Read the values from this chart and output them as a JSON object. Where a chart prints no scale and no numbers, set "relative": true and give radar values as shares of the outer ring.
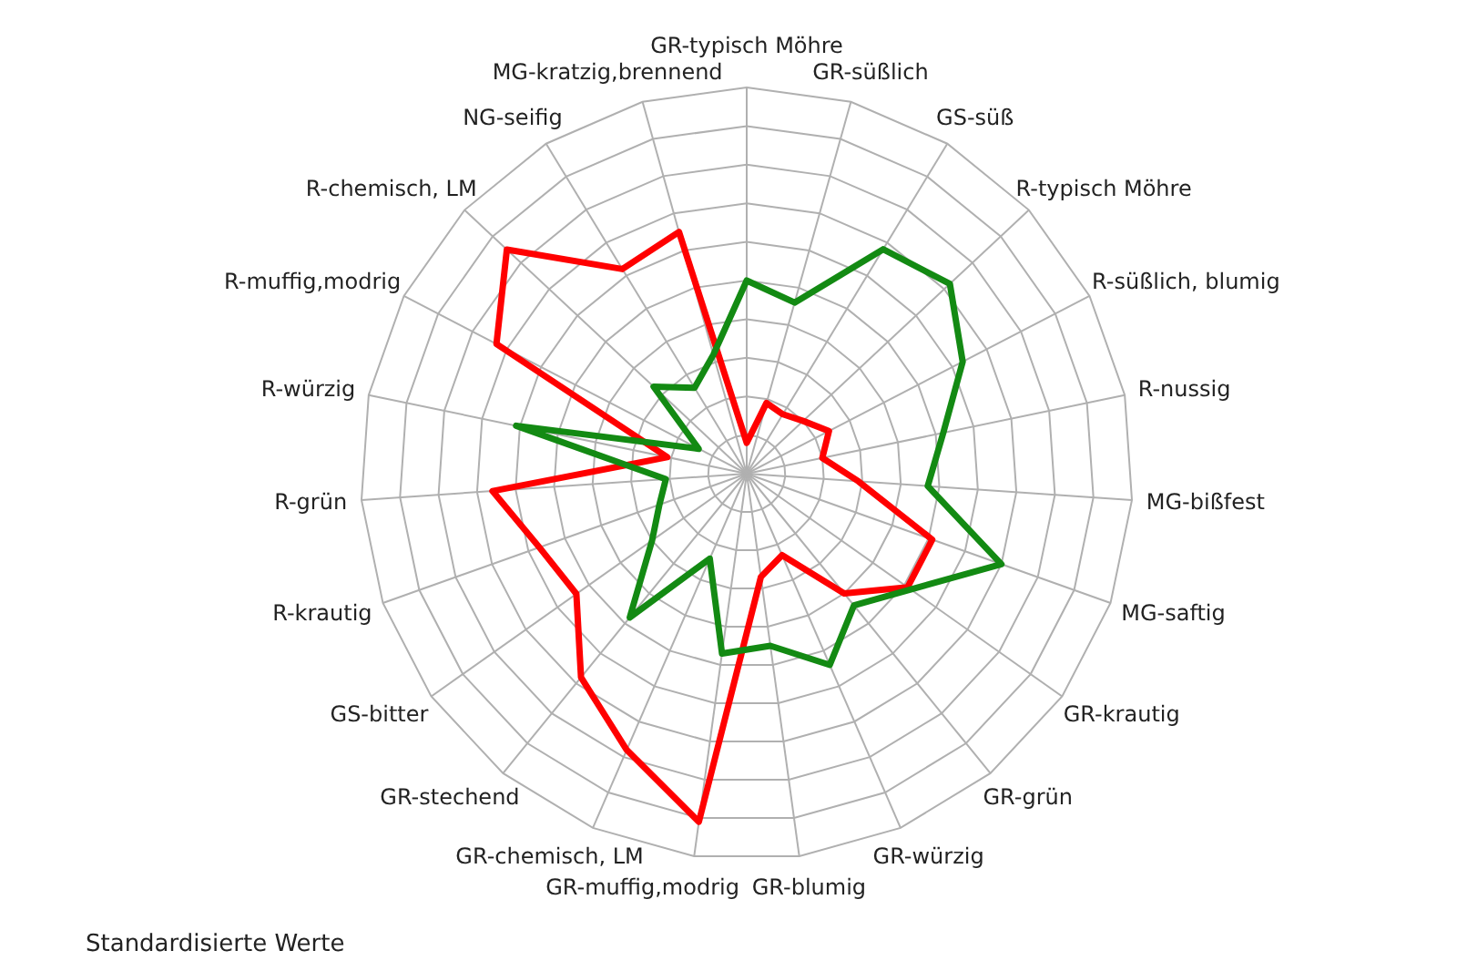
{
  "chart_data": {
    "type": "radar",
    "relative": true,
    "grid": true,
    "categories": [
      "GR-typisch Möhre",
      "GR-süßlich",
      "GS-süß",
      "R-typisch Möhre",
      "R-süßlich, blumig",
      "R-nussig",
      "MG-bißfest",
      "MG-saftig",
      "GR-krautig",
      "GR-grün",
      "GR-würzig",
      "GR-blumig",
      "GR-muffig,modrig",
      "GR-chemisch, LM",
      "GR-stechend",
      "GS-bitter",
      "R-krautig",
      "R-grün",
      "R-würzig",
      "R-muffig,modrig",
      "R-chemisch, LM",
      "NG-seifig",
      "MG-kratzig,brennend"
    ],
    "series": [
      {
        "color": "#ff0000",
        "values": [
          0.08,
          0.19,
          0.18,
          0.2,
          0.24,
          0.2,
          0.29,
          0.51,
          0.51,
          0.4,
          0.23,
          0.27,
          0.91,
          0.78,
          0.68,
          0.54,
          0.57,
          0.66,
          0.21,
          0.73,
          0.85,
          0.62,
          0.65
        ]
      },
      {
        "color": "#138a13",
        "values": [
          0.5,
          0.46,
          0.68,
          0.72,
          0.63,
          0.52,
          0.47,
          0.7,
          0.52,
          0.44,
          0.54,
          0.45,
          0.47,
          0.24,
          0.48,
          0.3,
          0.24,
          0.21,
          0.61,
          0.14,
          0.33,
          0.26,
          0.32
        ]
      }
    ],
    "annotations": [
      "Standardisierte Werte"
    ]
  }
}
